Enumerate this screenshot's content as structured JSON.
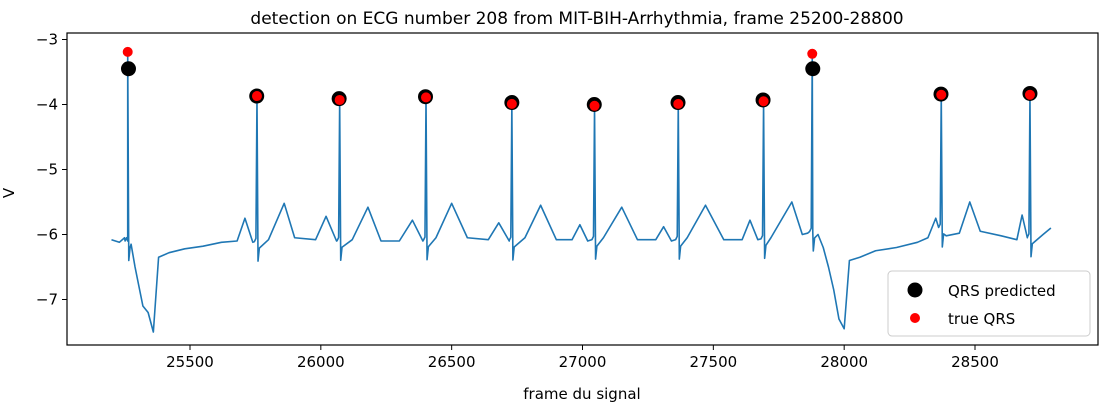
{
  "chart_data": {
    "type": "line",
    "title": "detection on ECG number 208 from MIT-BIH-Arrhythmia, frame 25200-28800",
    "xlabel": "frame du signal",
    "ylabel": "V",
    "xlim": [
      25030,
      28970
    ],
    "ylim": [
      -7.7,
      -2.9
    ],
    "xticks": [
      25500,
      26000,
      26500,
      27000,
      27500,
      28000,
      28500
    ],
    "yticks": [
      -7,
      -6,
      -5,
      -4,
      -3
    ],
    "grid": false,
    "legend_position": "lower-right",
    "series": [
      {
        "name": "",
        "kind": "line",
        "color": "#1f77b4",
        "baseline_x": [
          25200,
          25230,
          25250,
          25262,
          25275,
          25290,
          25305,
          25320,
          25340,
          25360,
          25380,
          25420,
          25480,
          25550,
          25620,
          25680,
          25710,
          25740,
          25800,
          25860,
          25900,
          25980,
          26020,
          26060,
          26120,
          26180,
          26230,
          26300,
          26350,
          26390,
          26440,
          26500,
          26560,
          26640,
          26680,
          26720,
          26780,
          26840,
          26900,
          26960,
          26990,
          27020,
          27080,
          27150,
          27210,
          27280,
          27310,
          27340,
          27400,
          27470,
          27540,
          27610,
          27640,
          27670,
          27720,
          27800,
          27840,
          27860,
          27880,
          27900,
          27920,
          27940,
          27960,
          27980,
          28000,
          28020,
          28060,
          28120,
          28200,
          28280,
          28320,
          28350,
          28390,
          28440,
          28480,
          28520,
          28600,
          28660,
          28680,
          28700,
          28760,
          28790
        ],
        "baseline_y": [
          -6.08,
          -6.12,
          -6.05,
          -6.1,
          -6.15,
          -6.5,
          -6.8,
          -7.1,
          -7.2,
          -7.5,
          -6.35,
          -6.28,
          -6.22,
          -6.18,
          -6.12,
          -6.1,
          -5.75,
          -6.12,
          -6.08,
          -5.52,
          -6.05,
          -6.08,
          -5.72,
          -6.1,
          -6.08,
          -5.58,
          -6.1,
          -6.1,
          -5.78,
          -6.1,
          -6.05,
          -5.52,
          -6.05,
          -6.08,
          -5.82,
          -6.1,
          -6.05,
          -5.55,
          -6.08,
          -6.08,
          -5.85,
          -6.1,
          -6.05,
          -5.58,
          -6.08,
          -6.08,
          -5.88,
          -6.1,
          -6.05,
          -5.55,
          -6.08,
          -6.08,
          -5.78,
          -6.08,
          -6.05,
          -5.5,
          -6.0,
          -5.98,
          -5.95,
          -6.0,
          -6.2,
          -6.5,
          -6.85,
          -7.3,
          -7.45,
          -6.4,
          -6.35,
          -6.25,
          -6.2,
          -6.12,
          -6.05,
          -5.75,
          -6.02,
          -5.98,
          -5.5,
          -5.95,
          -6.02,
          -6.08,
          -5.7,
          -6.05,
          -6.0,
          -5.9
        ]
      },
      {
        "name": "QRS predicted",
        "kind": "scatter",
        "color": "#000000",
        "x": [
          25265,
          25755,
          26070,
          26400,
          26730,
          27045,
          27365,
          27690,
          27880,
          28370,
          28710
        ],
        "y": [
          -3.45,
          -3.87,
          -3.91,
          -3.88,
          -3.97,
          -4.0,
          -3.97,
          -3.93,
          -3.45,
          -3.84,
          -3.83
        ]
      },
      {
        "name": "true QRS",
        "kind": "scatter",
        "color": "#ff0000",
        "x": [
          25262,
          25756,
          26072,
          26402,
          26730,
          27046,
          27366,
          27692,
          27878,
          28371,
          28710
        ],
        "y": [
          -3.19,
          -3.87,
          -3.93,
          -3.89,
          -3.99,
          -4.02,
          -3.99,
          -3.95,
          -3.22,
          -3.85,
          -3.85
        ]
      }
    ]
  }
}
